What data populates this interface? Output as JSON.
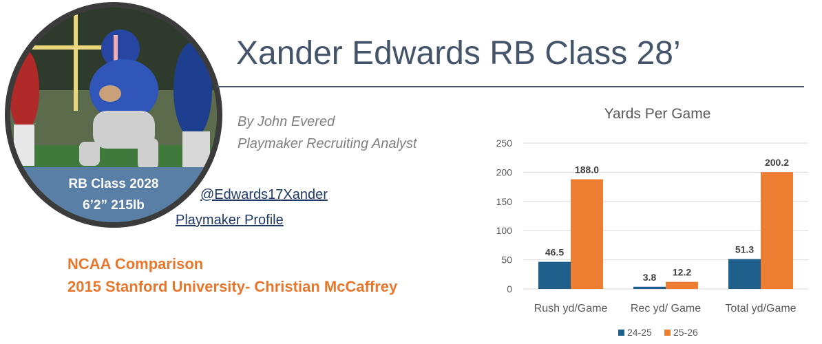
{
  "profile": {
    "band_line1": "RB Class 2028",
    "band_line2": "6’2” 215lb"
  },
  "header": {
    "title": "Xander Edwards RB Class 28’"
  },
  "byline": {
    "author": "By John Evered",
    "role": "Playmaker Recruiting Analyst"
  },
  "links": {
    "twitter": "@Edwards17Xander",
    "profile": "Playmaker Profile"
  },
  "comparison": {
    "heading": "NCAA Comparison",
    "detail": "2015 Stanford University- Christian McCaffrey"
  },
  "colors": {
    "title": "#44546a",
    "accent_orange": "#e8772e",
    "series_blue": "#1f5f8b",
    "series_orange": "#ed7d31",
    "link": "#1f3864"
  },
  "chart_data": {
    "type": "bar",
    "title": "Yards Per Game",
    "categories": [
      "Rush yd/Game",
      "Rec yd/ Game",
      "Total yd/Game"
    ],
    "series": [
      {
        "name": "24-25",
        "values": [
          46.5,
          3.8,
          51.3
        ],
        "labels": [
          "46.5",
          "3.8",
          "51.3"
        ],
        "color": "#1f5f8b"
      },
      {
        "name": "25-26",
        "values": [
          188.0,
          12.2,
          200.2
        ],
        "labels": [
          "188.0",
          "12.2",
          "200.2"
        ],
        "color": "#ed7d31"
      }
    ],
    "ylim": [
      0,
      250
    ],
    "yticks": [
      "0",
      "50",
      "100",
      "150",
      "200",
      "250"
    ],
    "grid": true,
    "legend": "bottom"
  }
}
